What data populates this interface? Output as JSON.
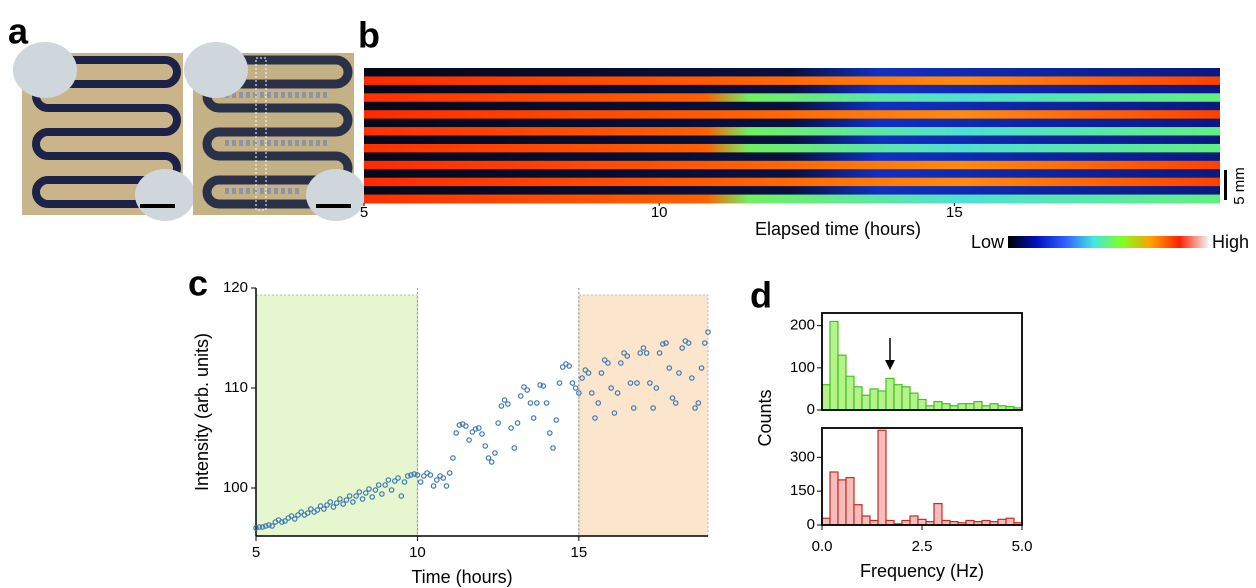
{
  "panel_labels": [
    "a",
    "b",
    "c",
    "d"
  ],
  "chart_data": [
    {
      "type": "heatmap",
      "xlim": [
        5,
        19.5
      ],
      "xticks": [
        5,
        10,
        15
      ],
      "xlabel": "Elapsed time (hours)",
      "scale_bar": "5 mm",
      "colorbar_labels": [
        "Low",
        "High"
      ],
      "colormap": [
        "#000000",
        "#0010c0",
        "#3060ff",
        "#40e8e0",
        "#80ff20",
        "#ffa000",
        "#ff2000",
        "#f0f0f0"
      ]
    },
    {
      "type": "scatter",
      "xlabel": "Time (hours)",
      "ylabel": "Intensity (arb. units)",
      "color": "#3b78b5",
      "xlim": [
        5,
        19
      ],
      "xticks": [
        5,
        10,
        15
      ],
      "ylim": [
        95.2,
        120
      ],
      "yticks": [
        100,
        110,
        120
      ],
      "shaded_regions": [
        {
          "xlim": [
            5,
            10
          ],
          "color": "#e6f6cf"
        },
        {
          "xlim": [
            15,
            19
          ],
          "color": "#fbe5cc"
        }
      ],
      "vlines": [
        10,
        15
      ],
      "x": [
        5.0,
        5.1,
        5.2,
        5.3,
        5.4,
        5.5,
        5.6,
        5.7,
        5.8,
        5.9,
        6.0,
        6.1,
        6.2,
        6.3,
        6.4,
        6.5,
        6.6,
        6.7,
        6.8,
        6.9,
        7.0,
        7.1,
        7.2,
        7.3,
        7.4,
        7.5,
        7.6,
        7.7,
        7.8,
        7.9,
        8.0,
        8.1,
        8.2,
        8.3,
        8.4,
        8.5,
        8.6,
        8.7,
        8.8,
        8.9,
        9.0,
        9.1,
        9.2,
        9.3,
        9.4,
        9.5,
        9.6,
        9.7,
        9.8,
        9.9,
        10.0,
        10.1,
        10.2,
        10.3,
        10.4,
        10.5,
        10.6,
        10.7,
        10.8,
        10.9,
        11.0,
        11.1,
        11.2,
        11.3,
        11.4,
        11.5,
        11.6,
        11.7,
        11.8,
        11.9,
        12.0,
        12.1,
        12.2,
        12.3,
        12.4,
        12.5,
        12.6,
        12.7,
        12.8,
        12.9,
        13.0,
        13.1,
        13.2,
        13.3,
        13.4,
        13.5,
        13.6,
        13.7,
        13.8,
        13.9,
        14.0,
        14.1,
        14.2,
        14.3,
        14.4,
        14.5,
        14.6,
        14.7,
        14.8,
        14.9,
        15.0,
        15.1,
        15.2,
        15.3,
        15.4,
        15.5,
        15.6,
        15.7,
        15.8,
        15.9,
        16.0,
        16.1,
        16.2,
        16.3,
        16.4,
        16.5,
        16.6,
        16.7,
        16.8,
        16.9,
        17.0,
        17.1,
        17.2,
        17.3,
        17.4,
        17.5,
        17.6,
        17.7,
        17.8,
        17.9,
        18.0,
        18.1,
        18.2,
        18.3,
        18.4,
        18.5,
        18.6,
        18.7,
        18.8,
        18.9,
        19.0
      ],
      "y": [
        96.0,
        96.1,
        96.1,
        96.2,
        96.3,
        96.2,
        96.6,
        96.8,
        96.6,
        96.7,
        97.0,
        97.2,
        96.9,
        97.3,
        97.6,
        97.3,
        97.5,
        97.9,
        97.6,
        97.8,
        98.2,
        97.9,
        98.3,
        98.6,
        98.1,
        98.5,
        98.9,
        98.4,
        98.8,
        99.2,
        98.6,
        99.2,
        99.6,
        98.9,
        99.5,
        99.9,
        99.1,
        99.8,
        100.3,
        99.4,
        100.3,
        100.8,
        99.8,
        100.7,
        101.0,
        99.2,
        100.6,
        101.2,
        101.3,
        101.4,
        101.3,
        100.6,
        101.2,
        101.5,
        101.3,
        100.2,
        100.8,
        101.2,
        101.0,
        100.2,
        101.5,
        103.0,
        105.5,
        106.3,
        106.4,
        106.2,
        104.8,
        105.6,
        105.9,
        106.0,
        105.4,
        104.2,
        103.0,
        102.6,
        103.5,
        106.5,
        108.2,
        108.8,
        108.4,
        106.0,
        104.0,
        106.5,
        109.2,
        110.1,
        109.8,
        108.5,
        107.0,
        108.5,
        110.3,
        110.2,
        108.5,
        105.5,
        104.0,
        106.8,
        110.5,
        112.1,
        112.4,
        112.2,
        110.5,
        110.0,
        109.5,
        111.0,
        111.8,
        111.5,
        109.5,
        107.0,
        108.5,
        111.5,
        112.8,
        112.5,
        110.0,
        107.5,
        109.5,
        112.5,
        113.5,
        113.2,
        110.5,
        108.0,
        110.5,
        113.5,
        114.0,
        113.5,
        110.5,
        108.0,
        110.0,
        113.5,
        114.4,
        114.5,
        112.0,
        109.0,
        108.5,
        111.5,
        114.0,
        114.7,
        114.5,
        111.0,
        108.0,
        108.5,
        112.0,
        114.5,
        115.6
      ]
    },
    {
      "type": "histogram",
      "ylabel": "Counts",
      "color": "#b6f28c",
      "edge_color": "#3fc51c",
      "xlim": [
        0,
        5
      ],
      "ylim": [
        0,
        230
      ],
      "yticks": [
        0,
        100,
        200
      ],
      "bins": [
        0,
        0.2,
        0.4,
        0.6,
        0.8,
        1.0,
        1.2,
        1.4,
        1.6,
        1.8,
        2.0,
        2.2,
        2.4,
        2.6,
        2.8,
        3.0,
        3.2,
        3.4,
        3.6,
        3.8,
        4.0,
        4.2,
        4.4,
        4.6,
        4.8,
        5.0
      ],
      "counts": [
        60,
        210,
        130,
        80,
        55,
        35,
        50,
        45,
        75,
        60,
        55,
        40,
        25,
        10,
        20,
        15,
        10,
        15,
        15,
        20,
        10,
        15,
        10,
        8,
        5
      ]
    },
    {
      "type": "histogram",
      "xlabel": "Frequency (Hz)",
      "color": "#f7bcbc",
      "edge_color": "#cc2a1a",
      "xlim": [
        0,
        5
      ],
      "xticks": [
        {
          "value": 0,
          "label": "0.0"
        },
        {
          "value": 2.5,
          "label": "2.5"
        },
        {
          "value": 5,
          "label": "5.0"
        }
      ],
      "ylim": [
        0,
        430
      ],
      "yticks": [
        0,
        150,
        300
      ],
      "bins": [
        0,
        0.2,
        0.4,
        0.6,
        0.8,
        1.0,
        1.2,
        1.4,
        1.6,
        1.8,
        2.0,
        2.2,
        2.4,
        2.6,
        2.8,
        3.0,
        3.2,
        3.4,
        3.6,
        3.8,
        4.0,
        4.2,
        4.4,
        4.6,
        4.8,
        5.0
      ],
      "counts": [
        30,
        235,
        200,
        210,
        90,
        40,
        20,
        420,
        20,
        5,
        20,
        40,
        25,
        15,
        95,
        20,
        15,
        10,
        20,
        15,
        20,
        15,
        25,
        30,
        10
      ]
    }
  ]
}
